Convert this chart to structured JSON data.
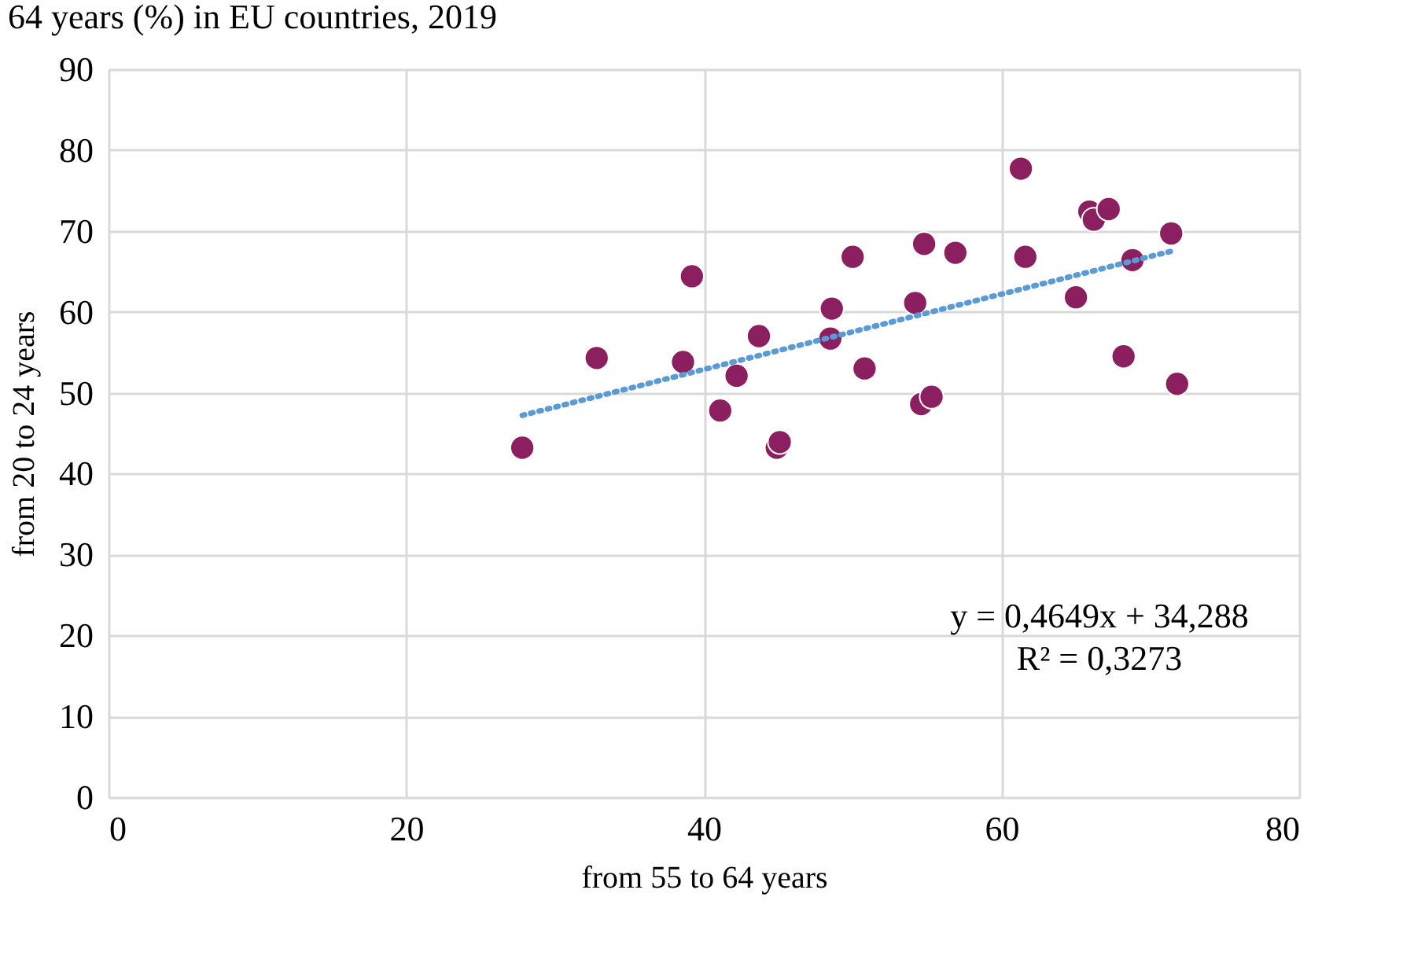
{
  "chart_data": {
    "type": "scatter",
    "title": "64 years (%) in EU countries, 2019",
    "xlabel": "from 55 to 64 years",
    "ylabel": "from 20 to 24 years",
    "xlim": [
      0,
      80
    ],
    "xticks": [
      0,
      20,
      40,
      60,
      80
    ],
    "ylim": [
      0,
      90
    ],
    "yticks": [
      0,
      10,
      20,
      30,
      40,
      50,
      60,
      70,
      80,
      90
    ],
    "grid": true,
    "legend": false,
    "series": [
      {
        "marker": "circle",
        "color": "#8b1f5f",
        "x": [
          27.8,
          32.8,
          38.6,
          39.2,
          41.1,
          42.2,
          43.7,
          44.9,
          45.1,
          48.5,
          48.6,
          50.0,
          50.8,
          54.2,
          54.6,
          55.3,
          54.8,
          56.9,
          61.3,
          61.6,
          65.0,
          65.9,
          66.2,
          67.2,
          68.2,
          68.8,
          71.4,
          71.8
        ],
        "values": [
          43.2,
          54.3,
          53.8,
          64.4,
          47.8,
          52.1,
          57.0,
          43.2,
          43.9,
          56.7,
          60.4,
          66.8,
          53.0,
          61.1,
          48.6,
          49.5,
          68.4,
          67.3,
          77.7,
          66.8,
          61.8,
          72.4,
          71.4,
          72.7,
          54.5,
          66.4,
          69.7,
          51.1
        ]
      },
      {
        "type": "line",
        "color": "#5b9bd5",
        "marker": "none",
        "line_style": "dotted",
        "x": [
          27.8,
          71.4
        ],
        "values": [
          47.2,
          67.5
        ]
      }
    ],
    "annotations": [
      "y = 0,4649x + 34,288",
      "R² = 0,3273"
    ]
  }
}
